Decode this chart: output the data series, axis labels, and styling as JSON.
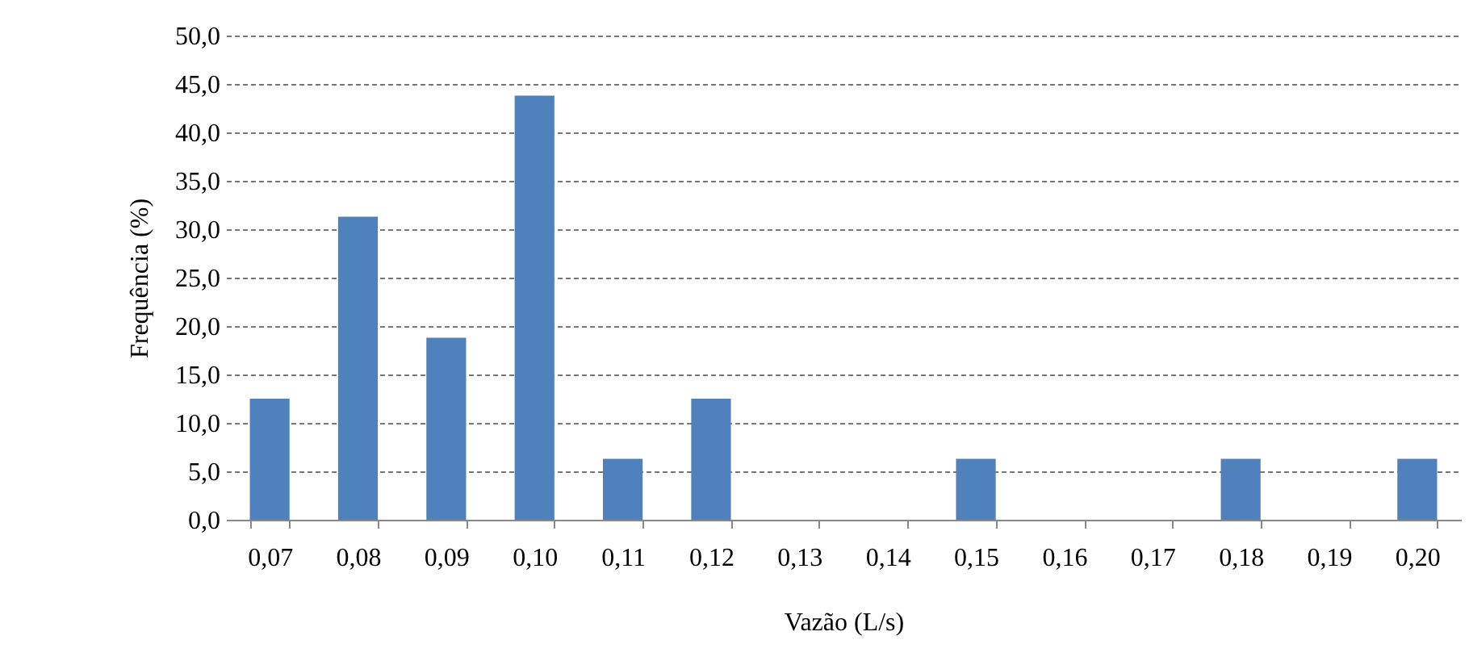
{
  "chart_data": {
    "type": "bar",
    "xlabel": "Vazão (L/s)",
    "ylabel": "Frequência (%)",
    "categories": [
      "0,07",
      "0,08",
      "0,09",
      "0,10",
      "0,11",
      "0,12",
      "0,13",
      "0,14",
      "0,15",
      "0,16",
      "0,17",
      "0,18",
      "0,19",
      "0,20"
    ],
    "series": [
      {
        "color": "#4f81bd",
        "values": [
          12.5,
          31.3,
          18.8,
          43.8,
          6.3,
          12.5,
          0,
          0,
          6.3,
          0,
          0,
          6.3,
          0,
          6.3
        ]
      }
    ],
    "ylim": [
      0,
      50
    ],
    "yticks": [
      {
        "value": 0,
        "label": "0,0"
      },
      {
        "value": 5,
        "label": "5,0"
      },
      {
        "value": 10,
        "label": "10,0"
      },
      {
        "value": 15,
        "label": "15,0"
      },
      {
        "value": 20,
        "label": "20,0"
      },
      {
        "value": 25,
        "label": "25,0"
      },
      {
        "value": 30,
        "label": "30,0"
      },
      {
        "value": 35,
        "label": "35,0"
      },
      {
        "value": 40,
        "label": "40,0"
      },
      {
        "value": 45,
        "label": "45,0"
      },
      {
        "value": 50,
        "label": "50,0"
      }
    ],
    "grid": "y",
    "legend": false
  }
}
